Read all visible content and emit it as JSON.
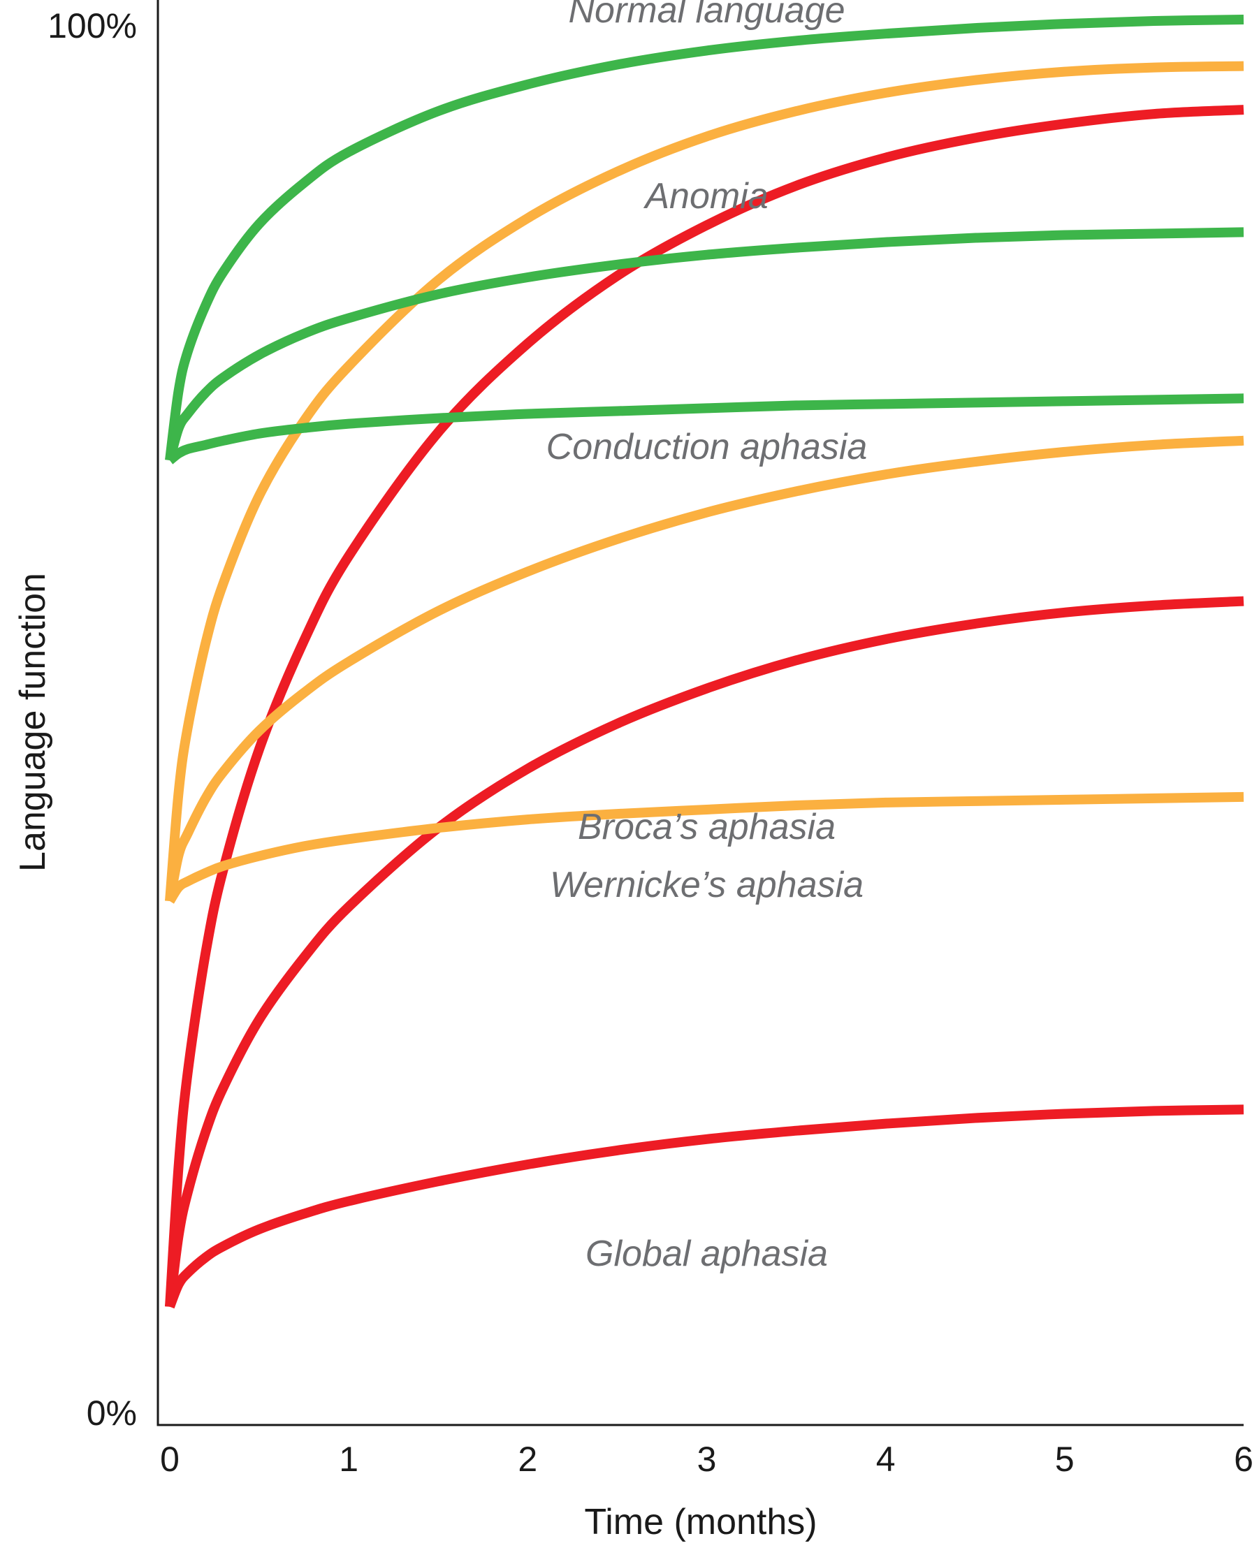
{
  "chart_data": {
    "type": "line",
    "xlabel": "Time (months)",
    "ylabel": "Language function",
    "xlim": [
      0,
      6
    ],
    "ylim": [
      0,
      100
    ],
    "x_ticks": [
      "0",
      "1",
      "2",
      "3",
      "4",
      "5",
      "6"
    ],
    "y_ticks": [
      {
        "value": 0,
        "label": "0%"
      },
      {
        "value": 100,
        "label": "100%"
      }
    ],
    "grid": false,
    "legend": "none",
    "colors": {
      "green": "#3db54a",
      "orange": "#fbb040",
      "red": "#ed1c24"
    },
    "series": [
      {
        "color": "green",
        "x": [
          0,
          0.05,
          0.1,
          0.2,
          0.3,
          0.5,
          0.75,
          1,
          1.5,
          2,
          2.5,
          3,
          3.5,
          4,
          4.5,
          5,
          5.5,
          6
        ],
        "y": [
          68.5,
          73.5,
          76.2,
          79.5,
          81.9,
          85.3,
          88.2,
          90.4,
          93.3,
          95.2,
          96.6,
          97.6,
          98.3,
          98.8,
          99.2,
          99.5,
          99.7,
          99.8
        ]
      },
      {
        "color": "green",
        "x": [
          0,
          0.05,
          0.1,
          0.2,
          0.3,
          0.5,
          0.75,
          1,
          1.5,
          2,
          2.5,
          3,
          3.5,
          4,
          4.5,
          5,
          5.5,
          6
        ],
        "y": [
          68.5,
          70.8,
          71.8,
          73.3,
          74.4,
          76.0,
          77.5,
          78.6,
          80.3,
          81.5,
          82.4,
          83.1,
          83.6,
          84.0,
          84.3,
          84.5,
          84.6,
          84.7
        ]
      },
      {
        "color": "green",
        "x": [
          0,
          0.05,
          0.1,
          0.2,
          0.3,
          0.5,
          0.75,
          1,
          1.5,
          2,
          2.5,
          3,
          3.5,
          4,
          4.5,
          5,
          5.5,
          6
        ],
        "y": [
          68.5,
          69.0,
          69.3,
          69.6,
          69.9,
          70.4,
          70.8,
          71.1,
          71.5,
          71.8,
          72.0,
          72.2,
          72.4,
          72.5,
          72.6,
          72.7,
          72.8,
          72.9
        ]
      },
      {
        "color": "orange",
        "x": [
          0,
          0.05,
          0.1,
          0.2,
          0.3,
          0.5,
          0.75,
          1,
          1.5,
          2,
          2.5,
          3,
          3.5,
          4,
          4.5,
          5,
          5.5,
          6
        ],
        "y": [
          37.2,
          45.0,
          49.5,
          55.5,
          59.8,
          66.0,
          71.3,
          75.2,
          81.3,
          85.7,
          89.0,
          91.5,
          93.3,
          94.6,
          95.5,
          96.1,
          96.4,
          96.5
        ]
      },
      {
        "color": "orange",
        "x": [
          0,
          0.05,
          0.1,
          0.2,
          0.3,
          0.5,
          0.75,
          1,
          1.5,
          2,
          2.5,
          3,
          3.5,
          4,
          4.5,
          5,
          5.5,
          6
        ],
        "y": [
          37.2,
          40.5,
          42.0,
          44.5,
          46.4,
          49.3,
          52.0,
          54.2,
          57.8,
          60.6,
          62.9,
          64.8,
          66.3,
          67.5,
          68.4,
          69.1,
          69.6,
          69.9
        ]
      },
      {
        "color": "orange",
        "x": [
          0,
          0.05,
          0.1,
          0.2,
          0.3,
          0.5,
          0.75,
          1,
          1.5,
          2,
          2.5,
          3,
          3.5,
          4,
          4.5,
          5,
          5.5,
          6
        ],
        "y": [
          37.2,
          38.2,
          38.6,
          39.2,
          39.7,
          40.4,
          41.1,
          41.6,
          42.4,
          43.0,
          43.4,
          43.7,
          44.0,
          44.2,
          44.3,
          44.4,
          44.5,
          44.6
        ]
      },
      {
        "color": "red",
        "x": [
          0,
          0.05,
          0.1,
          0.2,
          0.3,
          0.5,
          0.75,
          1,
          1.5,
          2,
          2.5,
          3,
          3.5,
          4,
          4.5,
          5,
          5.5,
          6
        ],
        "y": [
          8.4,
          18.5,
          25.0,
          33.5,
          39.5,
          48.0,
          55.7,
          61.7,
          70.5,
          76.8,
          81.6,
          85.2,
          88.0,
          90.0,
          91.4,
          92.4,
          93.1,
          93.4
        ]
      },
      {
        "color": "red",
        "x": [
          0,
          0.05,
          0.1,
          0.2,
          0.3,
          0.5,
          0.75,
          1,
          1.5,
          2,
          2.5,
          3,
          3.5,
          4,
          4.5,
          5,
          5.5,
          6
        ],
        "y": [
          8.4,
          13.5,
          16.5,
          20.8,
          24.0,
          28.8,
          33.2,
          36.8,
          42.4,
          46.6,
          49.8,
          52.3,
          54.3,
          55.8,
          56.9,
          57.7,
          58.2,
          58.5
        ]
      },
      {
        "color": "red",
        "x": [
          0,
          0.05,
          0.1,
          0.2,
          0.3,
          0.5,
          0.75,
          1,
          1.5,
          2,
          2.5,
          3,
          3.5,
          4,
          4.5,
          5,
          5.5,
          6
        ],
        "y": [
          8.4,
          10.0,
          10.8,
          11.9,
          12.7,
          13.9,
          15.0,
          15.9,
          17.3,
          18.5,
          19.5,
          20.3,
          20.9,
          21.4,
          21.8,
          22.1,
          22.3,
          22.4
        ]
      }
    ],
    "annotations": [
      {
        "text": "Normal language",
        "x": 3,
        "y": 100.5
      },
      {
        "text": "Anomia",
        "x": 3,
        "y": 87.3
      },
      {
        "text": "Conduction aphasia",
        "x": 3,
        "y": 69.5
      },
      {
        "text": "Broca’s aphasia",
        "x": 3,
        "y": 42.5
      },
      {
        "text": "Wernicke’s aphasia",
        "x": 3,
        "y": 38.4
      },
      {
        "text": "Global aphasia",
        "x": 3,
        "y": 12.2
      }
    ]
  }
}
